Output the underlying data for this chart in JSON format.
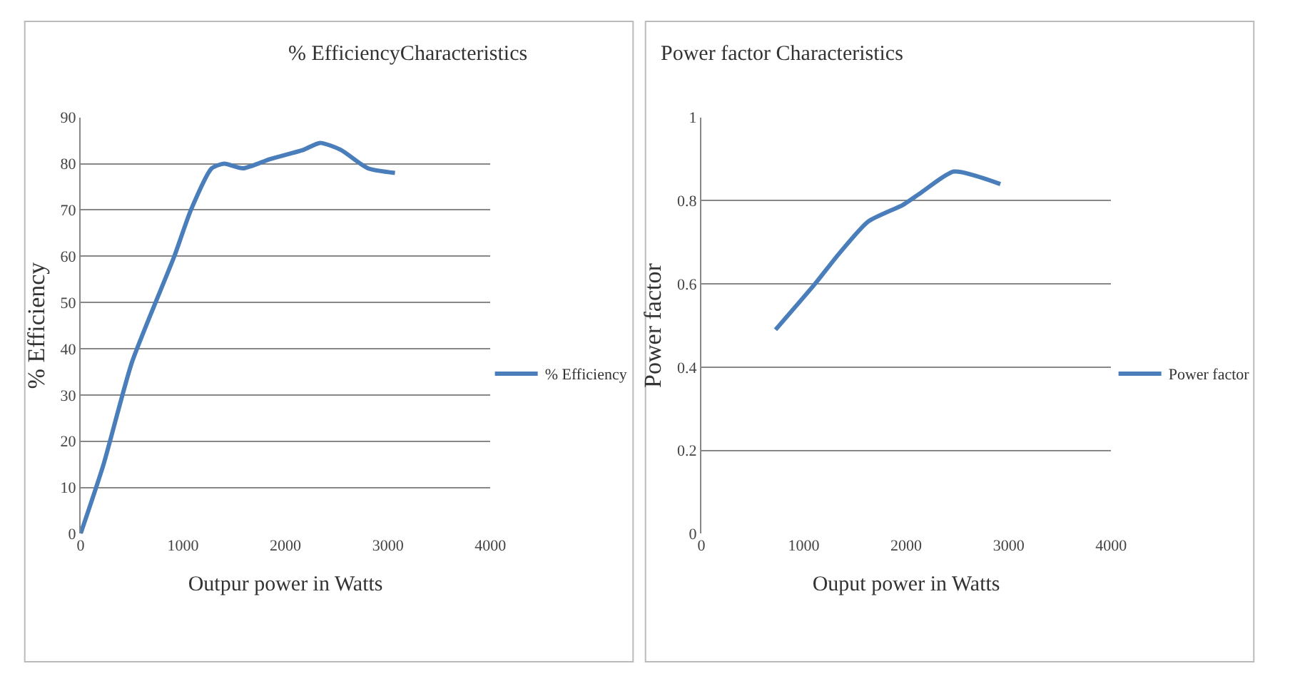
{
  "chart_data": [
    {
      "type": "line",
      "title": "% EfficiencyCharacteristics",
      "xlabel": "Outpur power in Watts",
      "ylabel": "% Efficiency",
      "x": [
        0,
        224,
        500,
        915,
        1077,
        1280,
        1402,
        1585,
        1850,
        2175,
        2337,
        2540,
        2805,
        3069
      ],
      "series": [
        {
          "name": "% Efficiency",
          "color": "#4a7ebb",
          "values": [
            0,
            15,
            37,
            60,
            70,
            79,
            80,
            79,
            81,
            83,
            84.5,
            83,
            79,
            78
          ]
        }
      ],
      "xlim": [
        0,
        4000
      ],
      "xticks": [
        0,
        1000,
        2000,
        3000,
        4000
      ],
      "ylim": [
        0,
        90
      ],
      "yticks": [
        0,
        10,
        20,
        30,
        40,
        50,
        60,
        70,
        80,
        90
      ],
      "grid": "y",
      "legend": "right",
      "marker": "none"
    },
    {
      "type": "line",
      "title": "Power factor Characteristics",
      "xlabel": "Ouput power in Watts",
      "ylabel": "Power factor",
      "x": [
        724,
        1109,
        1335,
        1629,
        1968,
        2149,
        2466,
        2919
      ],
      "series": [
        {
          "name": "Power factor",
          "color": "#4a7ebb",
          "values": [
            0.49,
            0.6,
            0.67,
            0.75,
            0.79,
            0.82,
            0.87,
            0.84
          ]
        }
      ],
      "xlim": [
        0,
        4000
      ],
      "xticks": [
        0,
        1000,
        2000,
        3000,
        4000
      ],
      "ylim": [
        0,
        1
      ],
      "yticks": [
        0,
        0.2,
        0.4,
        0.6,
        0.8,
        1
      ],
      "grid": "y",
      "legend": "right",
      "marker": "none"
    }
  ]
}
